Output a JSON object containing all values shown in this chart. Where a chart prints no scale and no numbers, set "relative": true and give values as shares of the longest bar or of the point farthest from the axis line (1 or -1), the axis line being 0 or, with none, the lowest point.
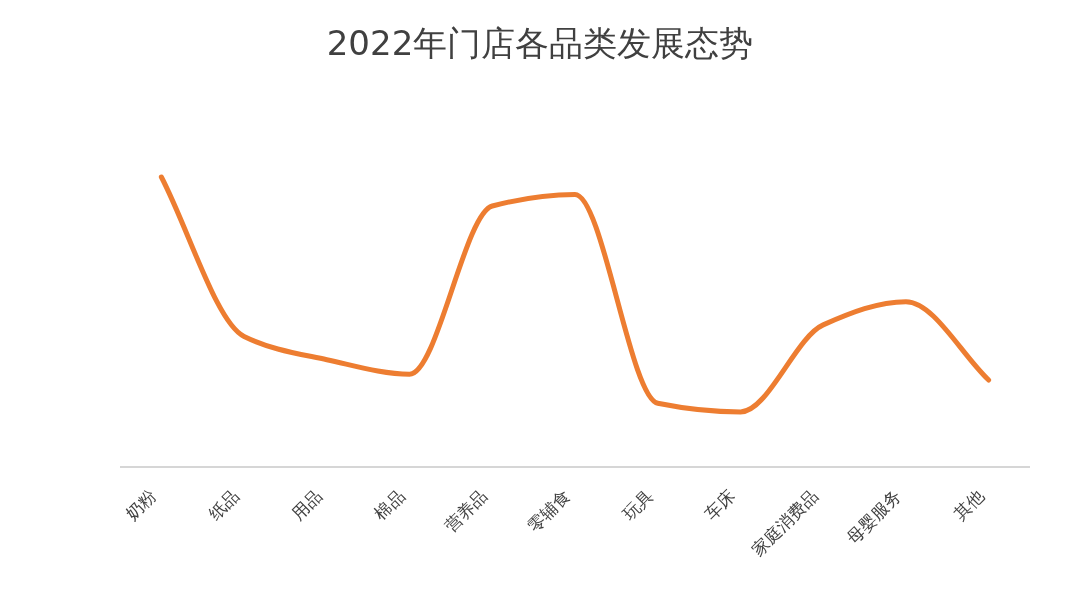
{
  "chart_data": {
    "type": "line",
    "title": "2022年门店各品类发展态势",
    "relative": true,
    "categories": [
      "奶粉",
      "纸品",
      "用品",
      "棉品",
      "营养品",
      "零辅食",
      "玩具",
      "车床",
      "家庭消费品",
      "母婴服务",
      "其他"
    ],
    "series": [
      {
        "color": "#ed7d31",
        "values": [
          1,
          0.45,
          0.37,
          0.32,
          0.9,
          0.94,
          0.22,
          0.19,
          0.49,
          0.57,
          0.3
        ]
      }
    ],
    "marker": "none",
    "line_style": "solid"
  }
}
